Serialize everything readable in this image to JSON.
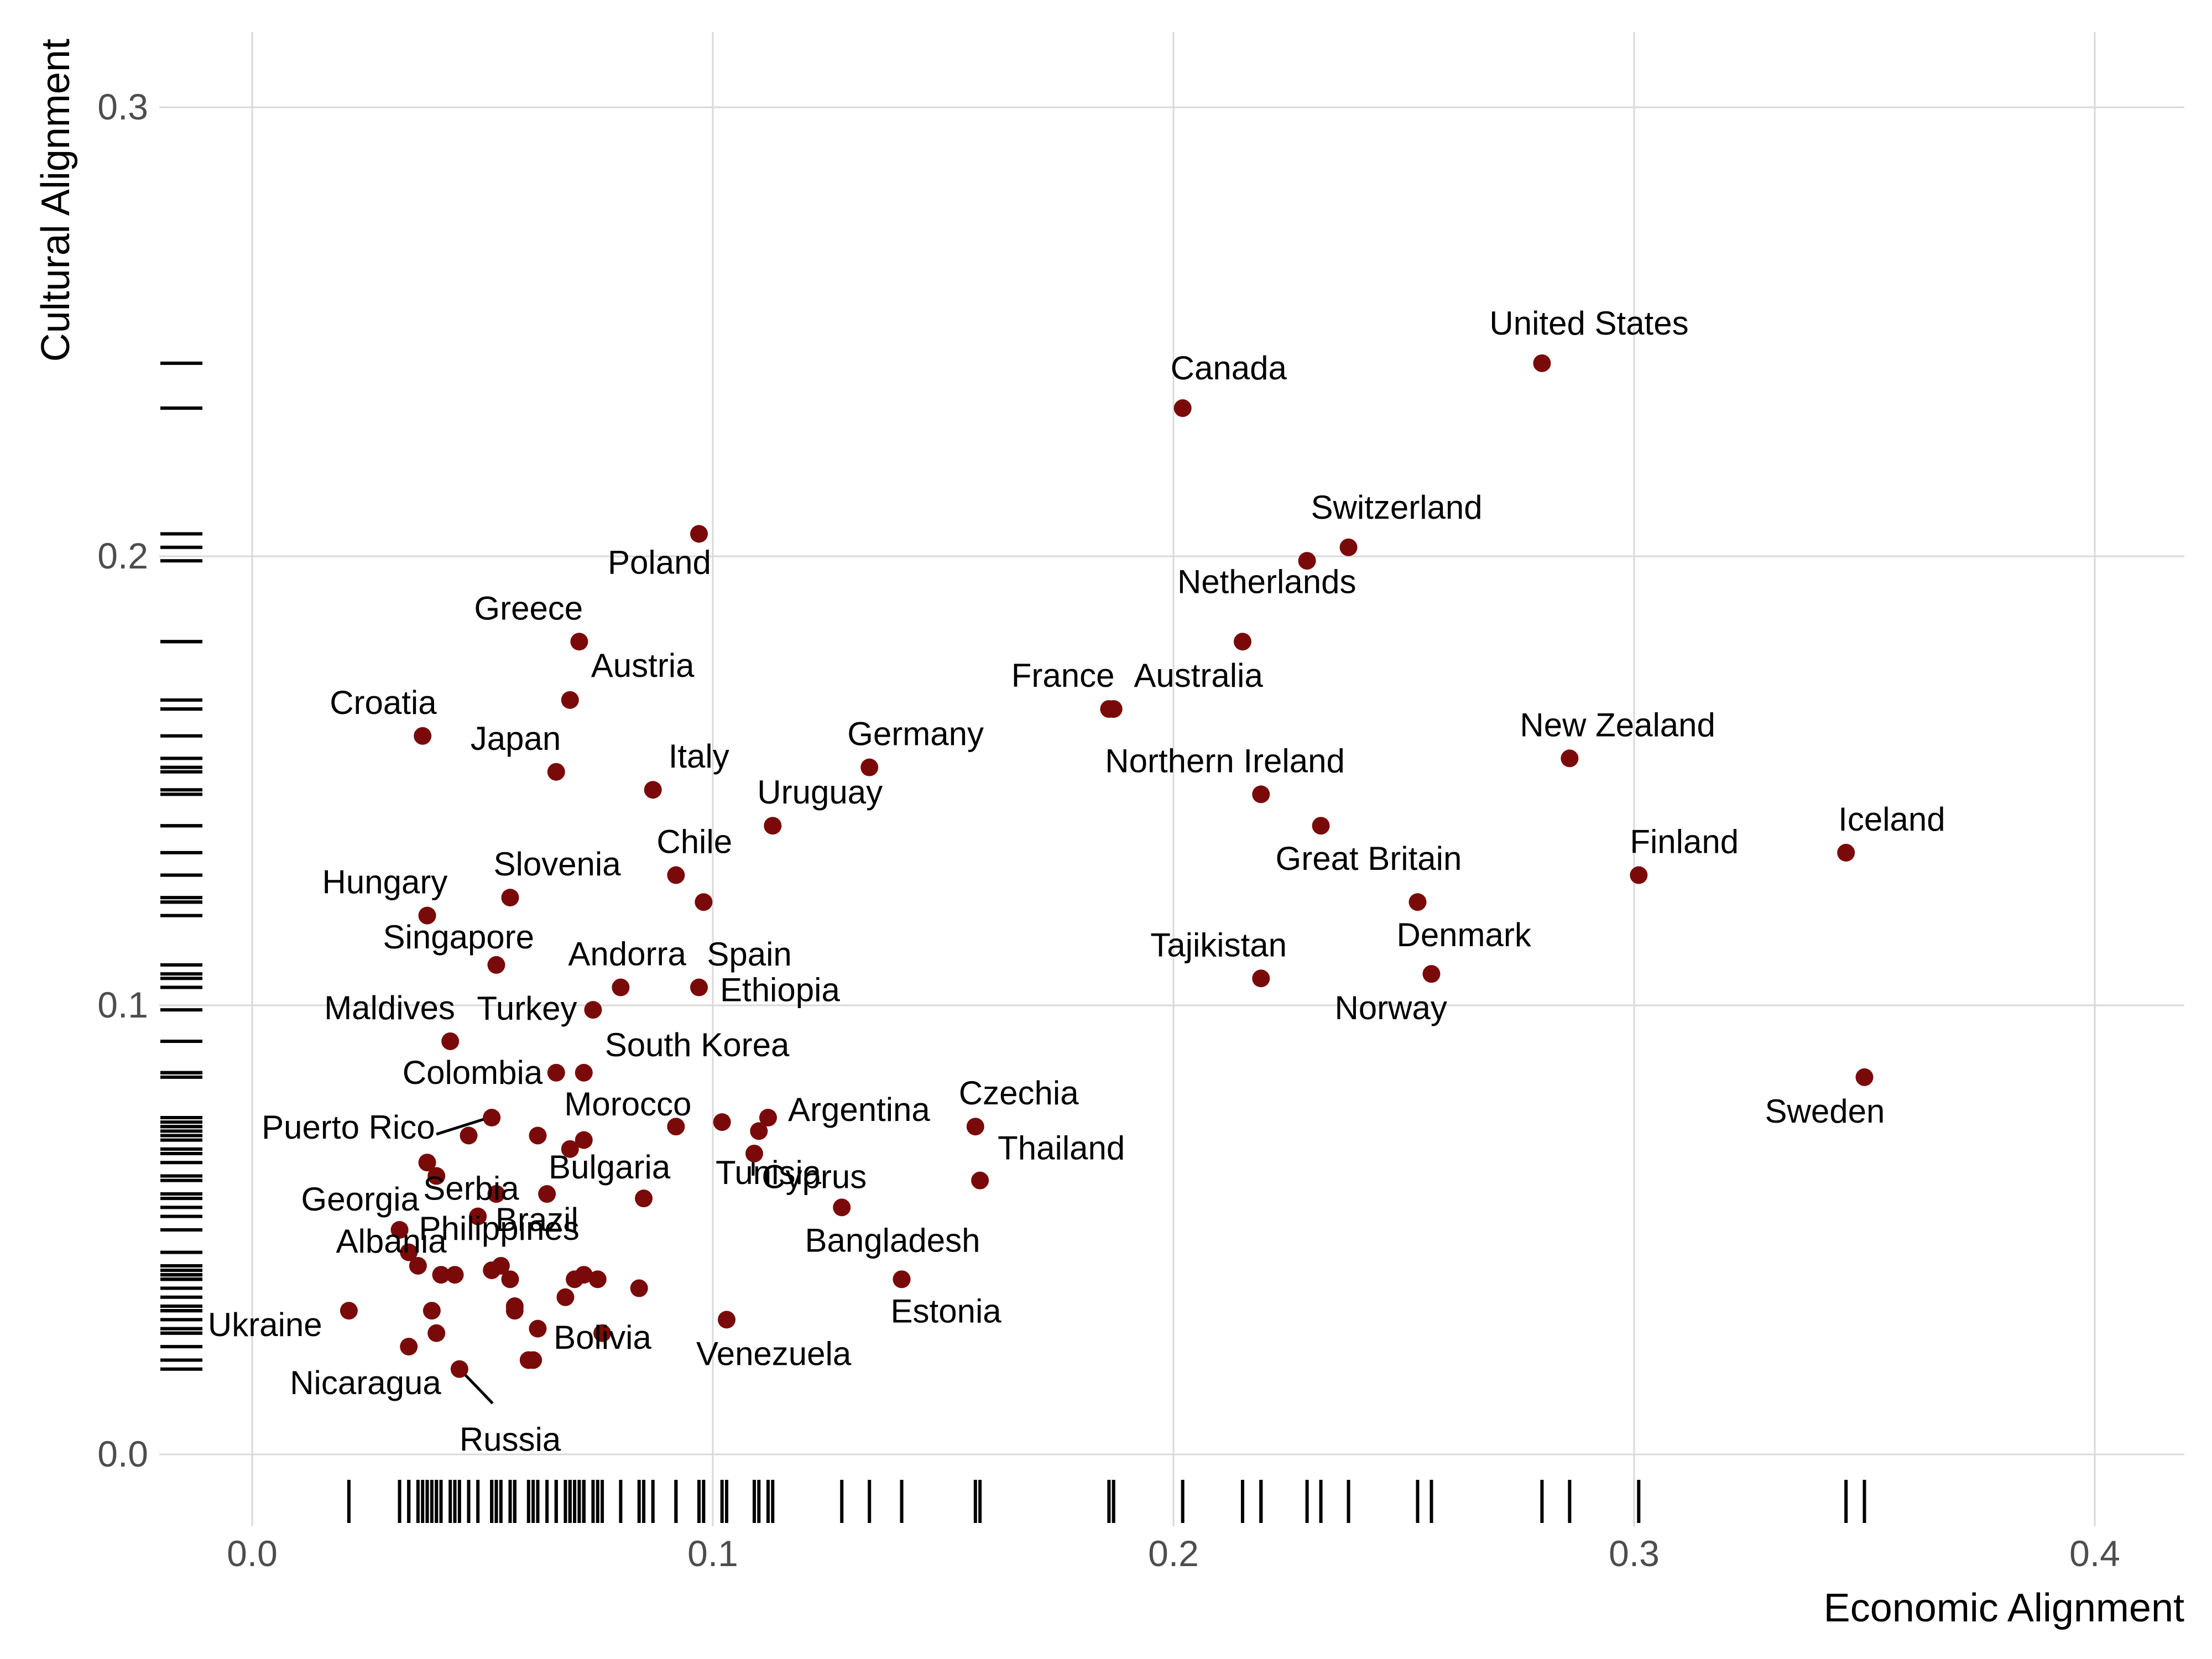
{
  "chart_data": {
    "type": "scatter",
    "xlabel": "Economic Alignment",
    "ylabel": "Cultural Alignment",
    "xlim": [
      -0.02,
      0.42
    ],
    "ylim": [
      -0.014,
      0.315
    ],
    "xticks": [
      0.0,
      0.1,
      0.2,
      0.3,
      0.4
    ],
    "yticks": [
      0.0,
      0.1,
      0.2,
      0.3
    ],
    "xtick_labels": [
      "0.0",
      "0.1",
      "0.2",
      "0.3",
      "0.4"
    ],
    "ytick_labels": [
      "0.0",
      "0.1",
      "0.2",
      "0.3"
    ],
    "grid": true,
    "rug": true,
    "colors": {
      "point": "#7a0a0a",
      "grid": "#d9d9d9",
      "rug": "#000000"
    },
    "points": [
      {
        "label": "United States",
        "x": 0.28,
        "y": 0.243
      },
      {
        "label": "Canada",
        "x": 0.202,
        "y": 0.233
      },
      {
        "label": "Switzerland",
        "x": 0.238,
        "y": 0.202
      },
      {
        "label": "",
        "x": 0.229,
        "y": 0.199
      },
      {
        "label": "Poland",
        "x": 0.097,
        "y": 0.205
      },
      {
        "label": "Netherlands",
        "x": 0.215,
        "y": 0.181
      },
      {
        "label": "Greece",
        "x": 0.071,
        "y": 0.181
      },
      {
        "label": "Austria",
        "x": 0.069,
        "y": 0.168
      },
      {
        "label": "France",
        "x": 0.187,
        "y": 0.166
      },
      {
        "label": "Australia",
        "x": 0.186,
        "y": 0.166
      },
      {
        "label": "Croatia",
        "x": 0.037,
        "y": 0.16
      },
      {
        "label": "Japan",
        "x": 0.066,
        "y": 0.152
      },
      {
        "label": "New Zealand",
        "x": 0.286,
        "y": 0.155
      },
      {
        "label": "Germany",
        "x": 0.134,
        "y": 0.153
      },
      {
        "label": "Italy",
        "x": 0.087,
        "y": 0.148
      },
      {
        "label": "Northern Ireland",
        "x": 0.219,
        "y": 0.147
      },
      {
        "label": "Uruguay",
        "x": 0.113,
        "y": 0.14
      },
      {
        "label": "Great Britain",
        "x": 0.232,
        "y": 0.14
      },
      {
        "label": "Iceland",
        "x": 0.346,
        "y": 0.134
      },
      {
        "label": "Finland",
        "x": 0.301,
        "y": 0.129
      },
      {
        "label": "Chile",
        "x": 0.092,
        "y": 0.129
      },
      {
        "label": "Slovenia",
        "x": 0.056,
        "y": 0.124
      },
      {
        "label": "Spain",
        "x": 0.098,
        "y": 0.123
      },
      {
        "label": "Denmark",
        "x": 0.253,
        "y": 0.123
      },
      {
        "label": "Hungary",
        "x": 0.038,
        "y": 0.12
      },
      {
        "label": "Singapore",
        "x": 0.053,
        "y": 0.109
      },
      {
        "label": "Tajikistan",
        "x": 0.219,
        "y": 0.106
      },
      {
        "label": "Norway",
        "x": 0.256,
        "y": 0.107
      },
      {
        "label": "Andorra",
        "x": 0.08,
        "y": 0.104
      },
      {
        "label": "Ethiopia",
        "x": 0.097,
        "y": 0.104
      },
      {
        "label": "Turkey",
        "x": 0.074,
        "y": 0.099
      },
      {
        "label": "Maldives",
        "x": 0.043,
        "y": 0.092
      },
      {
        "label": "Sweden",
        "x": 0.35,
        "y": 0.084
      },
      {
        "label": "South Korea",
        "x": 0.072,
        "y": 0.085
      },
      {
        "label": "Colombia",
        "x": 0.066,
        "y": 0.085
      },
      {
        "label": "Puerto Rico",
        "x": 0.052,
        "y": 0.075
      },
      {
        "label": "Argentina",
        "x": 0.112,
        "y": 0.075
      },
      {
        "label": "Czechia",
        "x": 0.157,
        "y": 0.073
      },
      {
        "label": "Morocco",
        "x": 0.092,
        "y": 0.073
      },
      {
        "label": "",
        "x": 0.102,
        "y": 0.074
      },
      {
        "label": "",
        "x": 0.11,
        "y": 0.072
      },
      {
        "label": "",
        "x": 0.047,
        "y": 0.071
      },
      {
        "label": "",
        "x": 0.062,
        "y": 0.071
      },
      {
        "label": "",
        "x": 0.072,
        "y": 0.07
      },
      {
        "label": "",
        "x": 0.069,
        "y": 0.068
      },
      {
        "label": "Tunisia",
        "x": 0.109,
        "y": 0.067
      },
      {
        "label": "",
        "x": 0.038,
        "y": 0.065
      },
      {
        "label": "Serbia",
        "x": 0.04,
        "y": 0.062
      },
      {
        "label": "Thailand",
        "x": 0.158,
        "y": 0.061
      },
      {
        "label": "Bulgaria",
        "x": 0.085,
        "y": 0.057
      },
      {
        "label": "",
        "x": 0.064,
        "y": 0.058
      },
      {
        "label": "",
        "x": 0.053,
        "y": 0.058
      },
      {
        "label": "Cyprus",
        "x": 0.128,
        "y": 0.055
      },
      {
        "label": "Georgia",
        "x": 0.032,
        "y": 0.05
      },
      {
        "label": "",
        "x": 0.049,
        "y": 0.053
      },
      {
        "label": "Philippines",
        "x": 0.041,
        "y": 0.04
      },
      {
        "label": "Brazil",
        "x": 0.054,
        "y": 0.042
      },
      {
        "label": "",
        "x": 0.034,
        "y": 0.045
      },
      {
        "label": "",
        "x": 0.036,
        "y": 0.042
      },
      {
        "label": "Bangladesh",
        "x": 0.141,
        "y": 0.039
      },
      {
        "label": "Albania",
        "x": 0.044,
        "y": 0.04
      },
      {
        "label": "",
        "x": 0.052,
        "y": 0.041
      },
      {
        "label": "",
        "x": 0.056,
        "y": 0.039
      },
      {
        "label": "",
        "x": 0.072,
        "y": 0.04
      },
      {
        "label": "",
        "x": 0.07,
        "y": 0.039
      },
      {
        "label": "",
        "x": 0.075,
        "y": 0.039
      },
      {
        "label": "",
        "x": 0.084,
        "y": 0.037
      },
      {
        "label": "",
        "x": 0.068,
        "y": 0.035
      },
      {
        "label": "Estonia",
        "x": 0.141,
        "y": 0.039
      },
      {
        "label": "Ukraine",
        "x": 0.021,
        "y": 0.032
      },
      {
        "label": "",
        "x": 0.039,
        "y": 0.032
      },
      {
        "label": "",
        "x": 0.057,
        "y": 0.033
      },
      {
        "label": "",
        "x": 0.057,
        "y": 0.032
      },
      {
        "label": "Venezuela",
        "x": 0.103,
        "y": 0.03
      },
      {
        "label": "",
        "x": 0.062,
        "y": 0.028
      },
      {
        "label": "Bolivia",
        "x": 0.076,
        "y": 0.027
      },
      {
        "label": "",
        "x": 0.04,
        "y": 0.027
      },
      {
        "label": "Nicaragua",
        "x": 0.034,
        "y": 0.024
      },
      {
        "label": "",
        "x": 0.06,
        "y": 0.021
      },
      {
        "label": "",
        "x": 0.061,
        "y": 0.021
      },
      {
        "label": "Russia",
        "x": 0.045,
        "y": 0.019
      }
    ],
    "annotations": [
      {
        "text": "United States"
      },
      {
        "text": "Canada"
      },
      {
        "text": "Switzerland"
      },
      {
        "text": "Netherlands"
      },
      {
        "text": "Poland"
      },
      {
        "text": "Greece"
      },
      {
        "text": "Austria"
      },
      {
        "text": "France"
      },
      {
        "text": "Australia"
      },
      {
        "text": "Croatia"
      },
      {
        "text": "Japan"
      },
      {
        "text": "Germany"
      },
      {
        "text": "New Zealand"
      },
      {
        "text": "Italy"
      },
      {
        "text": "Northern Ireland"
      },
      {
        "text": "Uruguay"
      },
      {
        "text": "Iceland"
      },
      {
        "text": "Finland"
      },
      {
        "text": "Chile"
      },
      {
        "text": "Great Britain"
      },
      {
        "text": "Slovenia"
      },
      {
        "text": "Hungary"
      },
      {
        "text": "Spain"
      },
      {
        "text": "Denmark"
      },
      {
        "text": "Singapore"
      },
      {
        "text": "Tajikistan"
      },
      {
        "text": "Andorra"
      },
      {
        "text": "Norway"
      },
      {
        "text": "Ethiopia"
      },
      {
        "text": "Turkey"
      },
      {
        "text": "Maldives"
      },
      {
        "text": "South Korea"
      },
      {
        "text": "Colombia"
      },
      {
        "text": "Sweden"
      },
      {
        "text": "Czechia"
      },
      {
        "text": "Morocco"
      },
      {
        "text": "Argentina"
      },
      {
        "text": "Puerto Rico"
      },
      {
        "text": "Thailand"
      },
      {
        "text": "Tunisia"
      },
      {
        "text": "Serbia"
      },
      {
        "text": "Bulgaria"
      },
      {
        "text": "Cyprus"
      },
      {
        "text": "Georgia"
      },
      {
        "text": "Brazil"
      },
      {
        "text": "Philippines"
      },
      {
        "text": "Bangladesh"
      },
      {
        "text": "Albania"
      },
      {
        "text": "Estonia"
      },
      {
        "text": "Ukraine"
      },
      {
        "text": "Venezuela"
      },
      {
        "text": "Bolivia"
      },
      {
        "text": "Nicaragua"
      },
      {
        "text": "Russia"
      }
    ]
  }
}
